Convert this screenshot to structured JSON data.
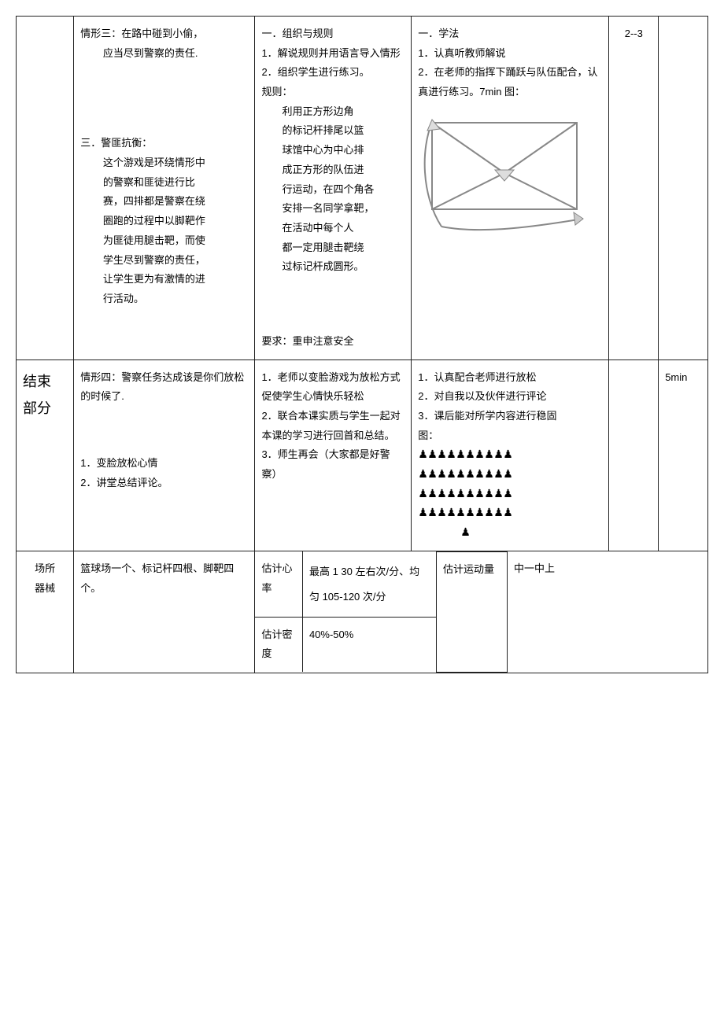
{
  "row1": {
    "colA_lines": [
      "情形三：在路中碰到小偷，",
      "应当尽到警察的责任.",
      "",
      "",
      "",
      "三．警匪抗衡：",
      "这个游戏是环绕情形中",
      "的警察和匪徒进行比",
      "赛，四排都是警察在绕",
      "圈跑的过程中以脚靶作",
      "为匪徒用腿击靶，而使",
      "学生尽到警察的责任，",
      "让学生更为有激情的进",
      "行活动。"
    ],
    "colB_head": "一．组织与规则",
    "colB_lines": [
      "1．解说规则并用语言导入情形",
      "2．组织学生进行练习。",
      "规则："
    ],
    "colB_rule_lines": [
      "利用正方形边角",
      "的标记杆排尾以篮",
      "球馆中心为中心排",
      "成正方形的队伍进",
      "行运动，在四个角各",
      "安排一名同学拿靶，",
      "在活动中每个人",
      "都一定用腿击靶绕",
      "过标记杆成圆形。"
    ],
    "colB_req": "要求：重申注意安全",
    "colC_head": "一．学法",
    "colC_lines": [
      "1．认真听教师解说",
      "2．在老师的指挥下踊跃与队伍配合，认真进行练习。7min 图："
    ],
    "diagram": {
      "stroke": "#888888",
      "fill": "#eeeeee",
      "arrow_fill": "#dddddd"
    },
    "colE": "2--3"
  },
  "row2": {
    "stage_l1": "结束",
    "stage_l2": "部分",
    "colA_top": "情形四：警察任务达成该是你们放松的时候了.",
    "colA_list": [
      "1．变脸放松心情",
      "2．讲堂总结评论。"
    ],
    "colB_lines": [
      "1．老师以变脸游戏为放松方式促使学生心情快乐轻松",
      "2．联合本课实质与学生一起对本课的学习进行回首和总结。",
      "3．师生再会（大家都是好警察）"
    ],
    "colC_lines": [
      "1．认真配合老师进行放松",
      "2．对自我以及伙伴进行评论",
      "3．课后能对所学内容进行稳固",
      "图："
    ],
    "people_rows": [
      10,
      10,
      10,
      10,
      1
    ],
    "people_color": "#000000",
    "colE": "5min"
  },
  "row3": {
    "label_l1": "场所",
    "label_l2": "器械",
    "equip": "篮球场一个、标记杆四根、脚靶四个。",
    "sub": {
      "hr_label": "估计心率",
      "hr_value": "最高 1 30 左右次/分、均匀 105-120 次/分",
      "dens_label": "估计密度",
      "dens_value": "40%-50%",
      "load_label": "估计运动量",
      "load_value": "中一中上"
    }
  }
}
